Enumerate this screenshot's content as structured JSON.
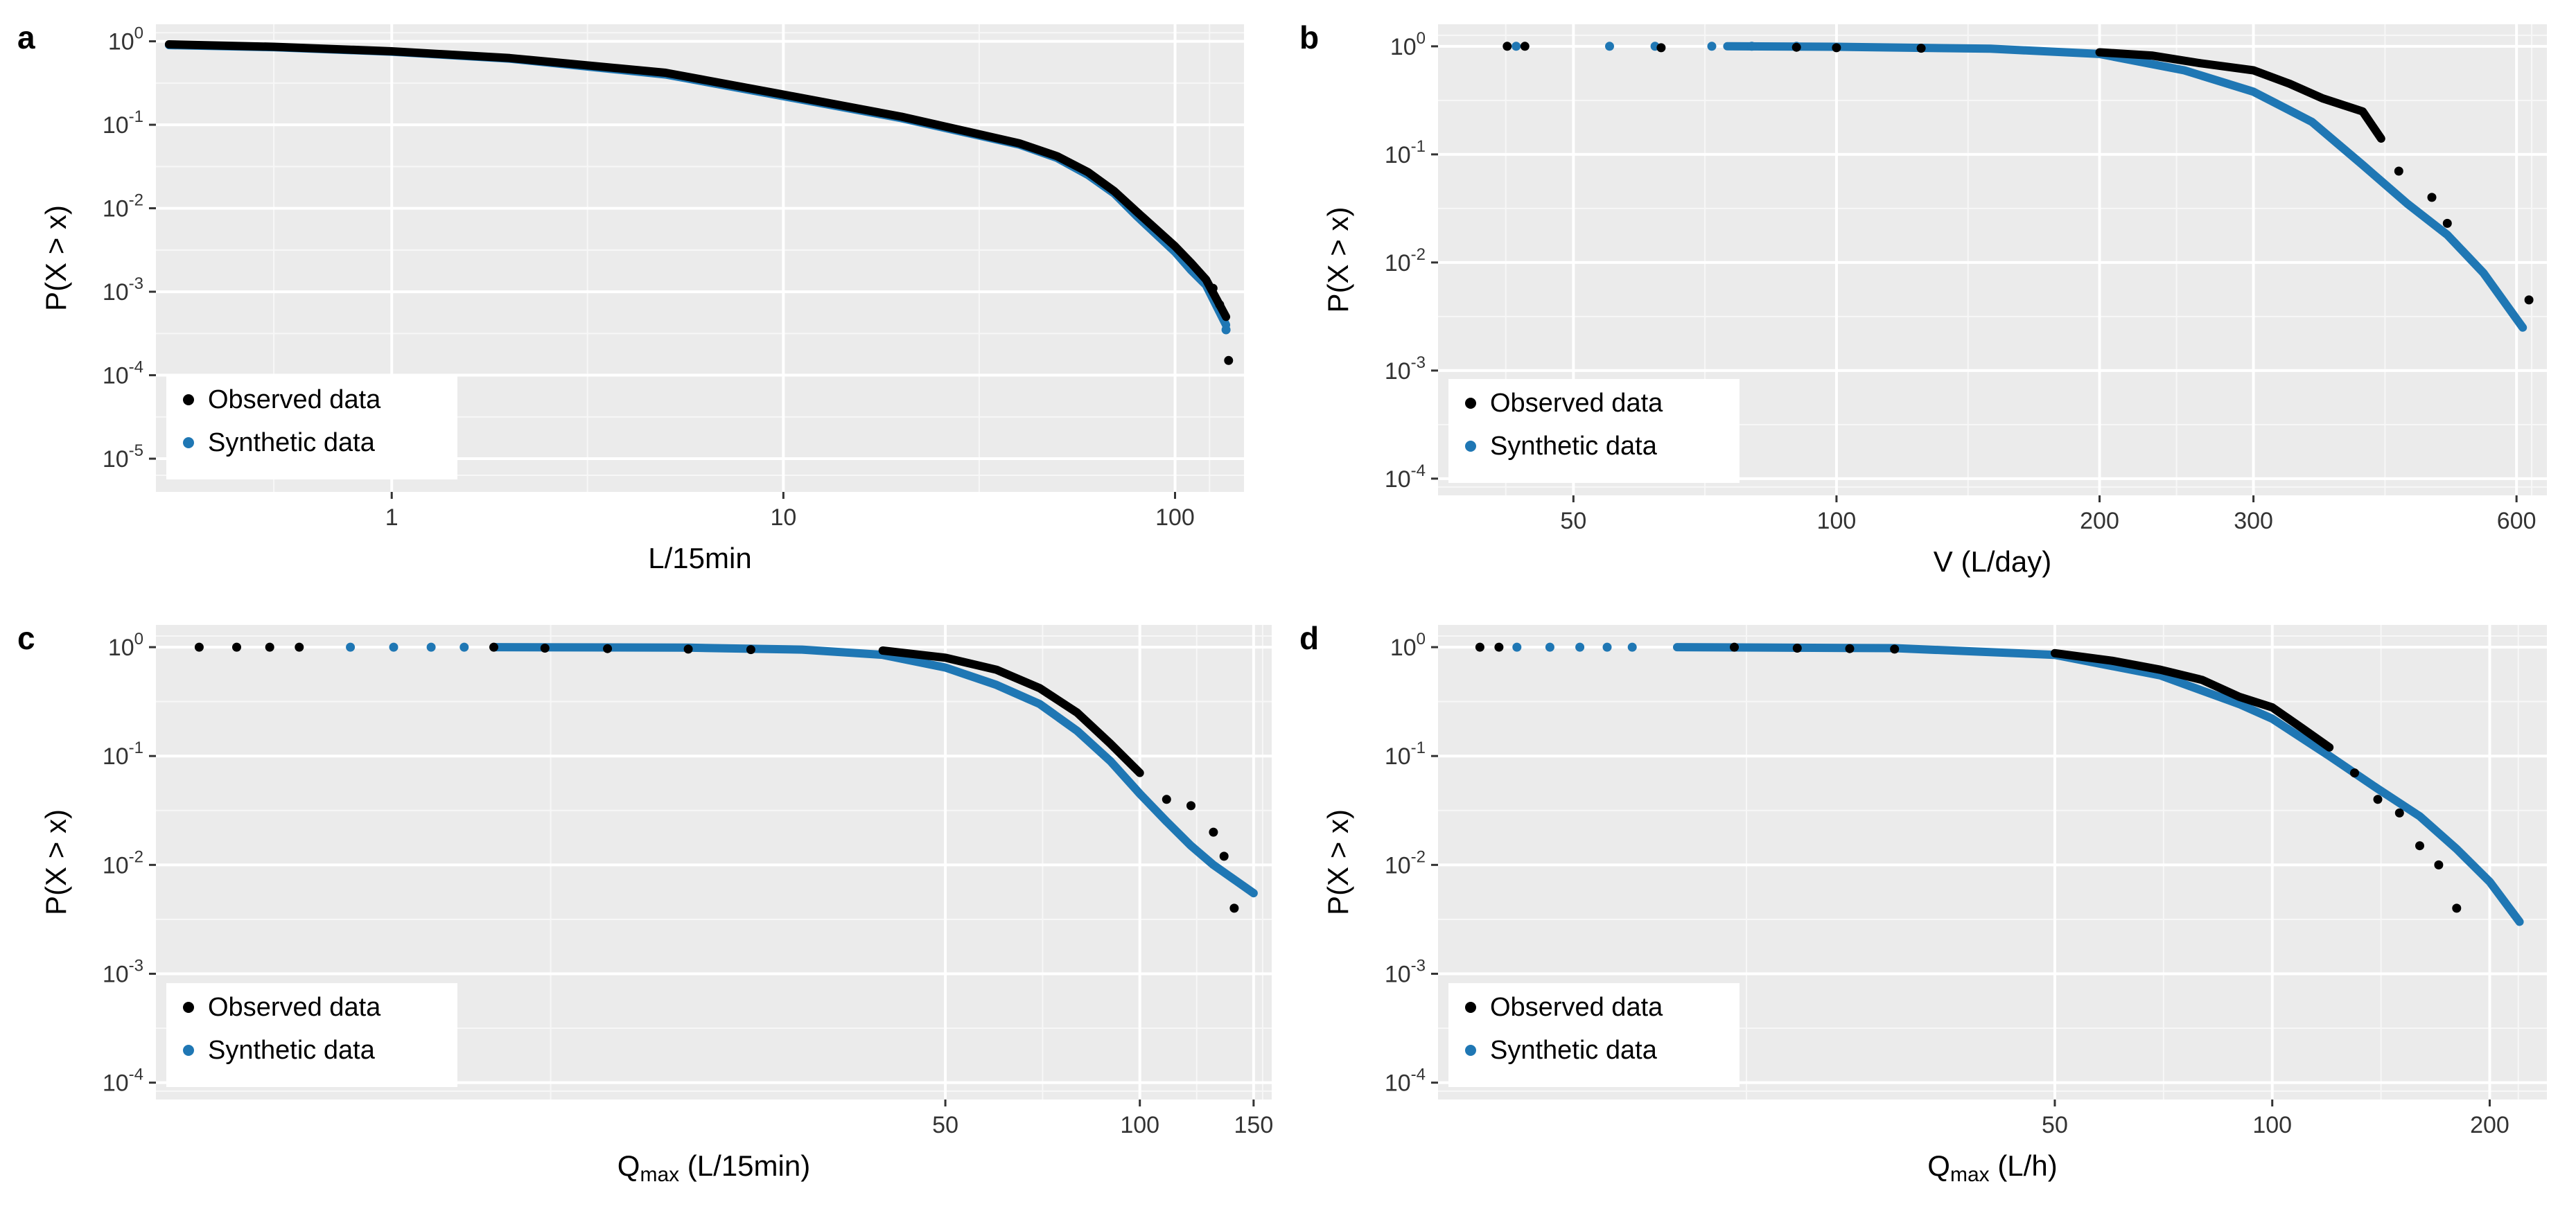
{
  "figure": {
    "background": "#ffffff",
    "panel_background": "#ebebeb",
    "grid_color": "#ffffff"
  },
  "legend_entries": [
    "Observed data",
    "Synthetic data"
  ],
  "colors": {
    "observed": "#000000",
    "synthetic": "#1f77b4"
  },
  "chart_data": [
    {
      "type": "scatter",
      "panel_label": "a",
      "xscale": "log",
      "yscale": "log",
      "xlim": [
        0.25,
        150
      ],
      "ylim": [
        4e-06,
        1.6
      ],
      "xlabel_main": "L/15min",
      "xlabel_sub": "",
      "xlabel_tail": "",
      "ylabel": "P(X > x)",
      "xticks": [
        1,
        10,
        100
      ],
      "xtick_labels": [
        "1",
        "10",
        "100"
      ],
      "yticks": [
        1,
        0.1,
        0.01,
        0.001,
        0.0001,
        1e-05
      ],
      "ytick_labels": [
        [
          "10",
          "0"
        ],
        [
          "10",
          "-1"
        ],
        [
          "10",
          "-2"
        ],
        [
          "10",
          "-3"
        ],
        [
          "10",
          "-4"
        ],
        [
          "10",
          "-5"
        ]
      ],
      "legend_position": "bottom-left",
      "series": [
        {
          "name": "Synthetic data",
          "color": "#1f77b4",
          "curve": [
            [
              0.27,
              0.9
            ],
            [
              0.5,
              0.85
            ],
            [
              1,
              0.75
            ],
            [
              2,
              0.62
            ],
            [
              5,
              0.4
            ],
            [
              10,
              0.22
            ],
            [
              20,
              0.12
            ],
            [
              40,
              0.058
            ],
            [
              50,
              0.04
            ],
            [
              60,
              0.025
            ],
            [
              70,
              0.015
            ],
            [
              80,
              0.008
            ],
            [
              100,
              0.003
            ],
            [
              110,
              0.0018
            ],
            [
              120,
              0.0012
            ],
            [
              135,
              0.0004
            ]
          ],
          "points": [
            [
              135,
              0.00035
            ]
          ]
        },
        {
          "name": "Observed data",
          "color": "#000000",
          "curve": [
            [
              0.27,
              0.92
            ],
            [
              0.5,
              0.86
            ],
            [
              1,
              0.76
            ],
            [
              2,
              0.63
            ],
            [
              5,
              0.42
            ],
            [
              10,
              0.23
            ],
            [
              20,
              0.125
            ],
            [
              40,
              0.06
            ],
            [
              50,
              0.042
            ],
            [
              60,
              0.027
            ],
            [
              70,
              0.016
            ],
            [
              80,
              0.009
            ],
            [
              100,
              0.0035
            ],
            [
              110,
              0.0022
            ],
            [
              120,
              0.0014
            ],
            [
              135,
              0.0005
            ]
          ],
          "points": [
            [
              130,
              0.0007
            ],
            [
              137,
              0.00015
            ],
            [
              125,
              0.0011
            ]
          ]
        }
      ]
    },
    {
      "type": "scatter",
      "panel_label": "b",
      "xscale": "log",
      "yscale": "log",
      "xlim": [
        35,
        650
      ],
      "ylim": [
        7e-05,
        1.6
      ],
      "xlabel_main": "V (L/day)",
      "xlabel_sub": "",
      "xlabel_tail": "",
      "ylabel": "P(X > x)",
      "xticks": [
        50,
        100,
        200,
        300,
        600
      ],
      "xtick_labels": [
        "50",
        "100",
        "200",
        "300",
        "600"
      ],
      "yticks": [
        1,
        0.1,
        0.01,
        0.001,
        0.0001
      ],
      "ytick_labels": [
        [
          "10",
          "0"
        ],
        [
          "10",
          "-1"
        ],
        [
          "10",
          "-2"
        ],
        [
          "10",
          "-3"
        ],
        [
          "10",
          "-4"
        ]
      ],
      "legend_position": "bottom-left",
      "series": [
        {
          "name": "Synthetic data",
          "color": "#1f77b4",
          "curve": [
            [
              75,
              1
            ],
            [
              100,
              0.99
            ],
            [
              150,
              0.95
            ],
            [
              200,
              0.85
            ],
            [
              250,
              0.6
            ],
            [
              300,
              0.38
            ],
            [
              350,
              0.2
            ],
            [
              400,
              0.08
            ],
            [
              450,
              0.035
            ],
            [
              500,
              0.018
            ],
            [
              550,
              0.008
            ],
            [
              600,
              0.003
            ],
            [
              610,
              0.0025
            ]
          ],
          "points": [
            [
              43,
              1
            ],
            [
              55,
              1
            ],
            [
              62,
              1
            ],
            [
              72,
              1
            ],
            [
              80,
              1
            ],
            [
              90,
              1
            ]
          ]
        },
        {
          "name": "Observed data",
          "color": "#000000",
          "curve": [
            [
              200,
              0.88
            ],
            [
              230,
              0.82
            ],
            [
              260,
              0.7
            ],
            [
              300,
              0.6
            ],
            [
              330,
              0.45
            ],
            [
              360,
              0.33
            ],
            [
              400,
              0.25
            ],
            [
              420,
              0.14
            ]
          ],
          "points": [
            [
              42,
              1
            ],
            [
              44,
              1
            ],
            [
              63,
              0.97
            ],
            [
              90,
              0.98
            ],
            [
              100,
              0.97
            ],
            [
              125,
              0.96
            ],
            [
              440,
              0.07
            ],
            [
              480,
              0.04
            ],
            [
              500,
              0.023
            ],
            [
              620,
              0.0045
            ]
          ]
        }
      ]
    },
    {
      "type": "scatter",
      "panel_label": "c",
      "xscale": "log",
      "yscale": "log",
      "xlim": [
        3,
        160
      ],
      "ylim": [
        7e-05,
        1.6
      ],
      "xlabel_main": "Q",
      "xlabel_sub": "max",
      "xlabel_tail": " (L/15min)",
      "ylabel": "P(X > x)",
      "xticks": [
        50,
        100,
        150
      ],
      "xtick_labels": [
        "50",
        "100",
        "150"
      ],
      "yticks": [
        1,
        0.1,
        0.01,
        0.001,
        0.0001
      ],
      "ytick_labels": [
        [
          "10",
          "0"
        ],
        [
          "10",
          "-1"
        ],
        [
          "10",
          "-2"
        ],
        [
          "10",
          "-3"
        ],
        [
          "10",
          "-4"
        ]
      ],
      "legend_position": "bottom-left",
      "series": [
        {
          "name": "Synthetic data",
          "color": "#1f77b4",
          "curve": [
            [
              10,
              1
            ],
            [
              20,
              0.99
            ],
            [
              30,
              0.95
            ],
            [
              40,
              0.85
            ],
            [
              50,
              0.65
            ],
            [
              60,
              0.45
            ],
            [
              70,
              0.3
            ],
            [
              80,
              0.17
            ],
            [
              90,
              0.09
            ],
            [
              100,
              0.045
            ],
            [
              110,
              0.025
            ],
            [
              120,
              0.015
            ],
            [
              130,
              0.01
            ],
            [
              150,
              0.0055
            ]
          ],
          "points": [
            [
              6,
              1
            ],
            [
              7,
              1
            ],
            [
              8,
              1
            ],
            [
              9,
              1
            ]
          ]
        },
        {
          "name": "Observed data",
          "color": "#000000",
          "curve": [
            [
              40,
              0.93
            ],
            [
              50,
              0.8
            ],
            [
              60,
              0.62
            ],
            [
              70,
              0.42
            ],
            [
              80,
              0.25
            ],
            [
              90,
              0.13
            ],
            [
              100,
              0.07
            ]
          ],
          "points": [
            [
              3.5,
              1
            ],
            [
              4,
              1
            ],
            [
              4.5,
              1
            ],
            [
              5,
              1
            ],
            [
              10,
              1
            ],
            [
              12,
              0.98
            ],
            [
              15,
              0.97
            ],
            [
              20,
              0.96
            ],
            [
              25,
              0.95
            ],
            [
              110,
              0.04
            ],
            [
              120,
              0.035
            ],
            [
              130,
              0.02
            ],
            [
              135,
              0.012
            ],
            [
              140,
              0.004
            ]
          ]
        }
      ]
    },
    {
      "type": "scatter",
      "panel_label": "d",
      "xscale": "log",
      "yscale": "log",
      "xlim": [
        7,
        240
      ],
      "ylim": [
        7e-05,
        1.6
      ],
      "xlabel_main": "Q",
      "xlabel_sub": "max",
      "xlabel_tail": " (L/h)",
      "ylabel": "P(X > x)",
      "xticks": [
        50,
        100,
        200
      ],
      "xtick_labels": [
        "50",
        "100",
        "200"
      ],
      "yticks": [
        1,
        0.1,
        0.01,
        0.001,
        0.0001
      ],
      "ytick_labels": [
        [
          "10",
          "0"
        ],
        [
          "10",
          "-1"
        ],
        [
          "10",
          "-2"
        ],
        [
          "10",
          "-3"
        ],
        [
          "10",
          "-4"
        ]
      ],
      "legend_position": "bottom-left",
      "series": [
        {
          "name": "Synthetic data",
          "color": "#1f77b4",
          "curve": [
            [
              15,
              1
            ],
            [
              30,
              0.98
            ],
            [
              50,
              0.85
            ],
            [
              70,
              0.55
            ],
            [
              90,
              0.3
            ],
            [
              100,
              0.22
            ],
            [
              120,
              0.1
            ],
            [
              140,
              0.05
            ],
            [
              160,
              0.028
            ],
            [
              180,
              0.014
            ],
            [
              200,
              0.007
            ],
            [
              220,
              0.003
            ]
          ],
          "points": [
            [
              9,
              1
            ],
            [
              10,
              1
            ],
            [
              11,
              1
            ],
            [
              12,
              1
            ],
            [
              13,
              1
            ]
          ]
        },
        {
          "name": "Observed data",
          "color": "#000000",
          "curve": [
            [
              50,
              0.88
            ],
            [
              60,
              0.75
            ],
            [
              70,
              0.62
            ],
            [
              80,
              0.5
            ],
            [
              90,
              0.35
            ],
            [
              100,
              0.28
            ],
            [
              110,
              0.18
            ],
            [
              120,
              0.12
            ]
          ],
          "points": [
            [
              8,
              1
            ],
            [
              8.5,
              1
            ],
            [
              18,
              1
            ],
            [
              22,
              0.98
            ],
            [
              26,
              0.97
            ],
            [
              30,
              0.96
            ],
            [
              130,
              0.07
            ],
            [
              140,
              0.04
            ],
            [
              150,
              0.03
            ],
            [
              160,
              0.015
            ],
            [
              170,
              0.01
            ],
            [
              180,
              0.004
            ]
          ]
        }
      ]
    }
  ]
}
